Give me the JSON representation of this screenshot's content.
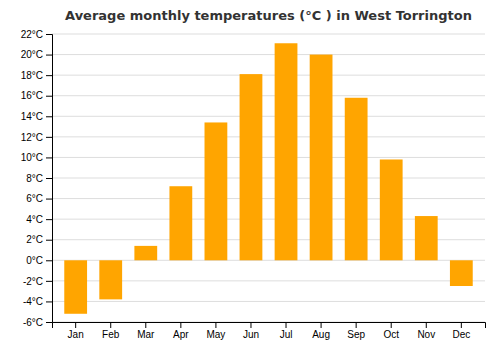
{
  "chart_data": {
    "type": "bar",
    "title": "Average monthly temperatures (°C ) in West Torrington",
    "categories": [
      "Jan",
      "Feb",
      "Mar",
      "Apr",
      "May",
      "Jun",
      "Jul",
      "Aug",
      "Sep",
      "Oct",
      "Nov",
      "Dec"
    ],
    "values": [
      -5.2,
      -3.8,
      1.4,
      7.2,
      13.4,
      18.1,
      21.1,
      20.0,
      15.8,
      9.8,
      4.3,
      -2.5
    ],
    "color": "#FFA500",
    "ylim": [
      -6,
      22
    ],
    "yticks": [
      {
        "value": -6,
        "label": "-6°C"
      },
      {
        "value": -4,
        "label": "-4°C"
      },
      {
        "value": -2,
        "label": "-2°C"
      },
      {
        "value": 0,
        "label": "0°C"
      },
      {
        "value": 2,
        "label": "2°C"
      },
      {
        "value": 4,
        "label": "4°C"
      },
      {
        "value": 6,
        "label": "6°C"
      },
      {
        "value": 8,
        "label": "8°C"
      },
      {
        "value": 10,
        "label": "10°C"
      },
      {
        "value": 12,
        "label": "12°C"
      },
      {
        "value": 14,
        "label": "14°C"
      },
      {
        "value": 16,
        "label": "16°C"
      },
      {
        "value": 18,
        "label": "18°C"
      },
      {
        "value": 20,
        "label": "20°C"
      },
      {
        "value": 22,
        "label": "22°C"
      }
    ],
    "grid": true
  }
}
